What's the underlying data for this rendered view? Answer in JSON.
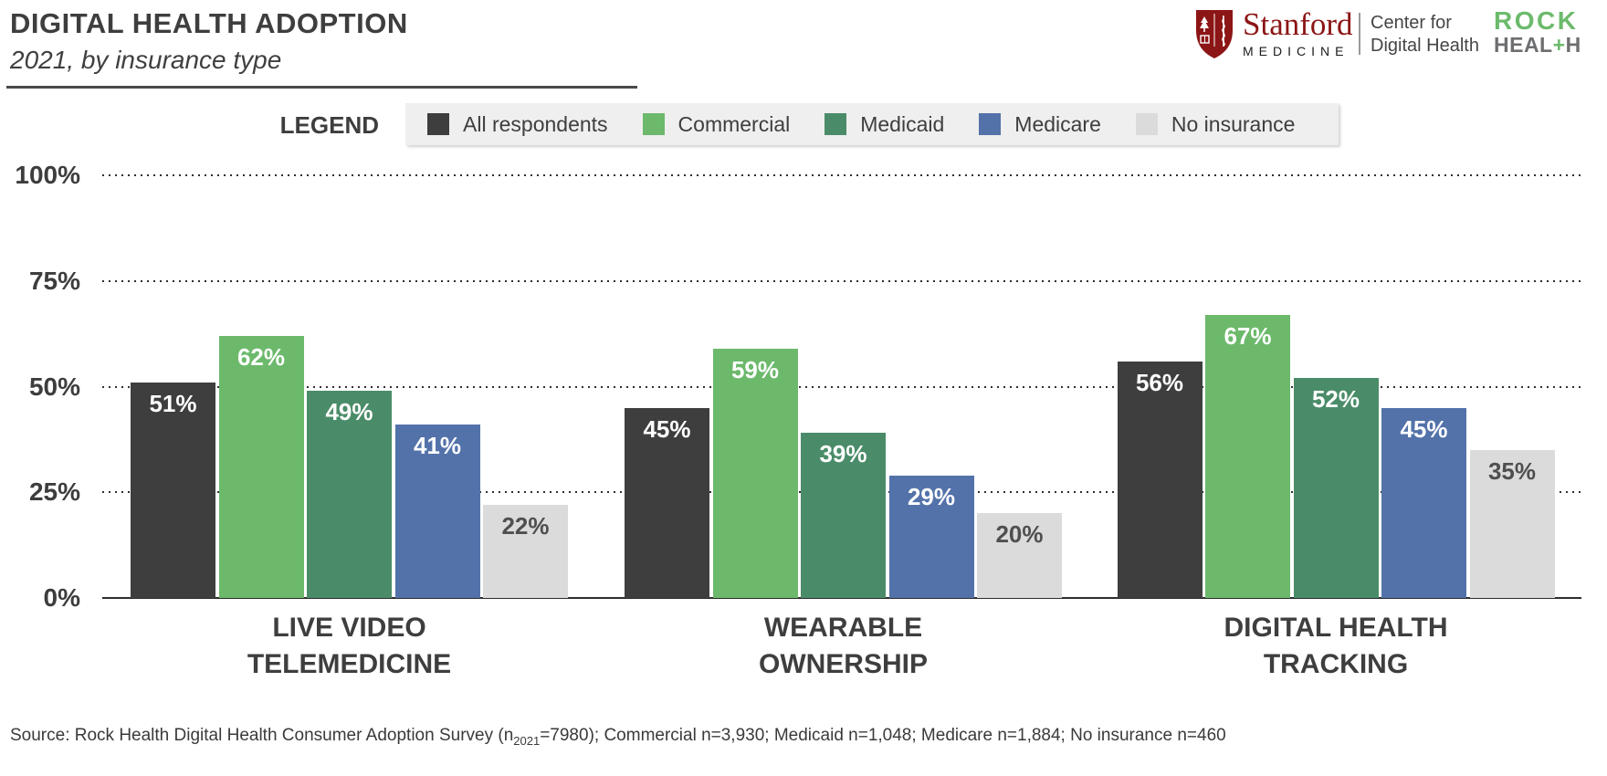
{
  "header": {
    "title": "DIGITAL HEALTH ADOPTION",
    "subtitle": "2021, by insurance type"
  },
  "branding": {
    "stanford": {
      "wordmark": "Stanford",
      "division": "MEDICINE",
      "center_line1": "Center for",
      "center_line2": "Digital Health",
      "red": "#8C1515"
    },
    "rock_health": {
      "top": "ROCK",
      "bottom_left": "HEAL",
      "bottom_plus": "+",
      "bottom_right": "H",
      "green": "#6CBA6C",
      "gray": "#6D6E70"
    }
  },
  "legend": {
    "title": "LEGEND"
  },
  "chart_data": {
    "type": "bar",
    "title": "DIGITAL HEALTH ADOPTION",
    "subtitle": "2021, by insurance type",
    "categories": [
      [
        "LIVE VIDEO",
        "TELEMEDICINE"
      ],
      [
        "WEARABLE",
        "OWNERSHIP"
      ],
      [
        "DIGITAL HEALTH",
        "TRACKING"
      ]
    ],
    "series": [
      {
        "name": "All respondents",
        "color": "#3E3E3E",
        "label_color": "#FFFFFF",
        "values": [
          51,
          45,
          56
        ]
      },
      {
        "name": "Commercial",
        "color": "#6CB96C",
        "label_color": "#FFFFFF",
        "values": [
          62,
          59,
          67
        ]
      },
      {
        "name": "Medicaid",
        "color": "#4A8C69",
        "label_color": "#FFFFFF",
        "values": [
          49,
          39,
          52
        ]
      },
      {
        "name": "Medicare",
        "color": "#5372A9",
        "label_color": "#FFFFFF",
        "values": [
          41,
          29,
          45
        ]
      },
      {
        "name": "No insurance",
        "color": "#DBDBDB",
        "label_color": "#4F4F4F",
        "values": [
          22,
          20,
          35
        ]
      }
    ],
    "y_ticks": [
      0,
      25,
      50,
      75,
      100
    ],
    "ylim": [
      0,
      100
    ],
    "value_suffix": "%",
    "grid": "horizontal dotted lines at 25/50/75/100, solid baseline at 0",
    "legend_position": "top"
  },
  "source": {
    "prefix": "Source: Rock Health Digital Health Consumer Adoption Survey (n",
    "subscript": "2021",
    "suffix": "=7980); Commercial n=3,930; Medicaid n=1,048; Medicare n=1,884; No insurance n=460"
  }
}
